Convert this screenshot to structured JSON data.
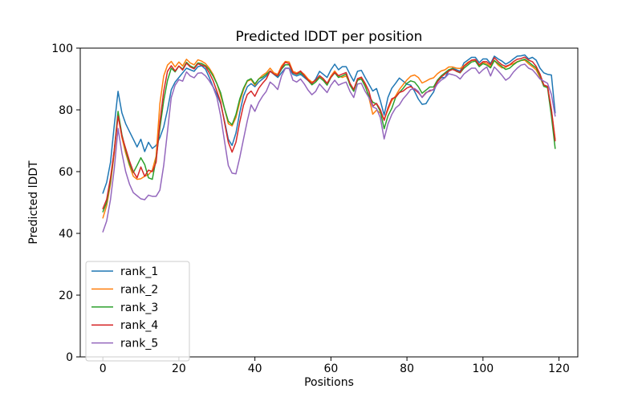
{
  "figure": {
    "title": "Predicted lDDT per position",
    "xlabel": "Positions",
    "ylabel": "Predicted lDDT"
  },
  "chart_data": {
    "type": "line",
    "title": "Predicted lDDT per position",
    "xlabel": "Positions",
    "ylabel": "Predicted lDDT",
    "xlim": [
      -5.95,
      124.95
    ],
    "ylim": [
      0,
      100
    ],
    "xticks": [
      0,
      20,
      40,
      60,
      80,
      100,
      120
    ],
    "yticks": [
      0,
      20,
      40,
      60,
      80,
      100
    ],
    "grid": false,
    "legend_position": "lower left",
    "x_range": [
      0,
      119
    ],
    "series": [
      {
        "name": "rank_1",
        "color": "#1f77b4",
        "values": [
          53,
          56.5,
          63,
          75,
          86,
          79,
          75.5,
          73,
          70.5,
          68,
          70.5,
          66.5,
          69.5,
          67.5,
          68.5,
          71,
          74.5,
          80,
          86.5,
          89,
          90.5,
          92,
          93.5,
          93,
          92.5,
          94,
          94.3,
          93.2,
          90.5,
          87.5,
          85,
          82,
          76.5,
          70.5,
          68.5,
          72.5,
          79,
          84.5,
          87.5,
          88.5,
          87.5,
          89,
          90,
          91,
          92.5,
          91.5,
          90.5,
          92,
          93.5,
          93.5,
          91.5,
          91,
          91.5,
          90.5,
          89.5,
          88.5,
          90,
          92.5,
          91.5,
          90.5,
          93,
          94.8,
          93,
          94,
          94,
          91.5,
          89.3,
          92.5,
          92.8,
          90.5,
          88.3,
          86.1,
          86.9,
          83,
          78.3,
          84,
          87,
          88.6,
          90.3,
          89.3,
          88.3,
          88,
          86,
          83.5,
          81.8,
          82,
          84,
          85.8,
          89.1,
          90.4,
          90.5,
          92.6,
          93.5,
          93,
          92.5,
          95.2,
          96.1,
          97,
          97,
          95.3,
          96.5,
          96.5,
          95,
          97.4,
          96.5,
          95.8,
          94.8,
          95.5,
          96.5,
          97.4,
          97.5,
          97.8,
          96.5,
          97,
          96.1,
          93.5,
          92,
          91.5,
          91.3,
          79
        ]
      },
      {
        "name": "rank_2",
        "color": "#ff7f0e",
        "values": [
          45,
          49,
          56,
          66,
          78.5,
          71,
          66,
          62,
          58.5,
          57.5,
          57.7,
          58.5,
          59,
          60.5,
          65,
          82,
          91,
          94.5,
          95.7,
          93.9,
          95.5,
          94.2,
          96.4,
          95.2,
          94.6,
          96.2,
          95.8,
          95,
          93.5,
          91.5,
          88.5,
          84.5,
          80.5,
          75.5,
          74.8,
          77.5,
          82.5,
          86.5,
          89.3,
          89.8,
          88,
          90,
          91.2,
          92,
          93.5,
          92,
          91.5,
          94.2,
          95.7,
          95.5,
          92.5,
          92,
          92.5,
          91.5,
          90,
          89,
          89.5,
          91,
          90,
          88.5,
          91,
          92.6,
          91,
          90.5,
          91,
          88.5,
          86.4,
          89.8,
          90.5,
          88,
          84,
          78.6,
          79.9,
          79,
          77,
          80,
          83,
          84.5,
          86.6,
          88.2,
          89.7,
          90.9,
          91.3,
          90.5,
          88.7,
          89.3,
          90,
          90.4,
          91.7,
          92.6,
          93,
          93.9,
          93.9,
          93.5,
          93.4,
          94.3,
          95.4,
          96,
          96.1,
          94.4,
          95.4,
          95,
          94,
          96,
          94.5,
          93.6,
          93.8,
          94.5,
          95,
          95.6,
          96,
          96.1,
          94.9,
          94,
          93,
          90.5,
          87.8,
          87.5,
          80,
          70.5
        ]
      },
      {
        "name": "rank_3",
        "color": "#2ca02c",
        "values": [
          47,
          50,
          57,
          67,
          79.5,
          72,
          67,
          62.5,
          59.7,
          62,
          64.5,
          62.3,
          58,
          57.5,
          64,
          74,
          83,
          89.5,
          93.5,
          92.3,
          94.2,
          93.2,
          95.4,
          94.2,
          93.6,
          95.2,
          95,
          94.3,
          93,
          91,
          88.5,
          85.5,
          80.5,
          76.3,
          75.2,
          78.5,
          83.5,
          87,
          89.5,
          90.1,
          88.4,
          90,
          90.6,
          91.5,
          92.6,
          91.6,
          91,
          93.2,
          94.6,
          94.6,
          92,
          91.5,
          92,
          91,
          89.5,
          88.1,
          89,
          90.5,
          89.5,
          88,
          90.5,
          92,
          90.5,
          91,
          91.6,
          88,
          86,
          89.6,
          90,
          87.6,
          84.6,
          82.5,
          81.9,
          79.5,
          73.9,
          78,
          80.5,
          84,
          85.6,
          87,
          88.6,
          89.4,
          89,
          87.5,
          85.4,
          86.4,
          87.4,
          87.4,
          89.6,
          91,
          92,
          93,
          93.4,
          92.5,
          92,
          93.5,
          94.5,
          95.5,
          95.8,
          94,
          95,
          94.5,
          93.6,
          96,
          95,
          94,
          93.1,
          93.5,
          94.6,
          95.5,
          96,
          96.4,
          95.5,
          94.5,
          93.6,
          91.1,
          87.6,
          87.2,
          78,
          67.5
        ]
      },
      {
        "name": "rank_4",
        "color": "#d62728",
        "values": [
          48,
          51,
          58,
          67,
          78,
          71.5,
          67.5,
          63.5,
          60,
          58,
          61.5,
          58.5,
          60.5,
          60,
          63,
          76,
          86,
          92.5,
          94.3,
          92.6,
          94.2,
          92.9,
          95.1,
          93.9,
          93.3,
          94.9,
          94.5,
          94,
          92,
          89.5,
          86,
          82.5,
          76,
          69.5,
          66.3,
          69.5,
          76,
          81.5,
          85,
          86.1,
          84.4,
          87,
          88.6,
          90,
          92.6,
          91.6,
          91.1,
          93.6,
          95.4,
          95,
          92.1,
          91.6,
          92.6,
          91.1,
          89.6,
          88.6,
          89.6,
          91.1,
          90.1,
          88.6,
          90.6,
          92.1,
          91.1,
          91.6,
          92.1,
          88.6,
          86.6,
          90.1,
          90.6,
          88.6,
          86.1,
          81.2,
          82.1,
          80.1,
          76.6,
          80.6,
          83.6,
          84.1,
          85.6,
          86.1,
          87.1,
          87.6,
          86.6,
          85.6,
          84.1,
          85.6,
          86.1,
          86.6,
          89.1,
          90.6,
          91.6,
          92.6,
          93.1,
          92.6,
          92.1,
          94.1,
          95.1,
          96.1,
          96.3,
          94.6,
          95.6,
          95.6,
          94.6,
          96.9,
          95.6,
          94.6,
          94.1,
          94.6,
          95.6,
          96.4,
          96.6,
          97.1,
          96.1,
          95.6,
          94.1,
          91.6,
          88.1,
          87.6,
          80.1,
          70
        ]
      },
      {
        "name": "rank_5",
        "color": "#9467bd",
        "values": [
          40.5,
          44,
          51,
          61,
          74,
          66,
          60,
          56,
          53.2,
          52.2,
          51.2,
          50.9,
          52.4,
          52,
          52,
          54,
          62,
          73,
          84,
          88,
          89.8,
          89.3,
          92.3,
          91,
          90.4,
          91.9,
          92,
          91,
          89.4,
          87.4,
          84,
          78,
          70,
          62,
          59.5,
          59.3,
          64.5,
          70.5,
          76.5,
          81.6,
          79.5,
          82.4,
          84.4,
          86,
          89,
          88,
          86.6,
          91,
          93.4,
          93.4,
          89.6,
          89,
          90,
          88.4,
          86.4,
          84.9,
          86,
          88.4,
          87,
          85.6,
          88,
          89.6,
          88,
          88.6,
          89,
          86,
          84,
          88.4,
          88.6,
          86,
          84,
          81,
          80.4,
          77.5,
          70.6,
          75.4,
          78.5,
          80.6,
          81.6,
          83.6,
          85,
          86.6,
          86.9,
          86,
          84,
          85.4,
          86.4,
          86.4,
          88.4,
          89.6,
          90.4,
          91.7,
          91.4,
          91,
          90,
          91.6,
          92.6,
          93.5,
          93.5,
          91.8,
          93,
          93.9,
          91,
          93.9,
          92.6,
          91.2,
          89.6,
          90.5,
          92.2,
          93.5,
          94.5,
          94.8,
          93.5,
          93,
          91.6,
          90,
          89.3,
          88.6,
          85,
          78
        ]
      }
    ]
  }
}
